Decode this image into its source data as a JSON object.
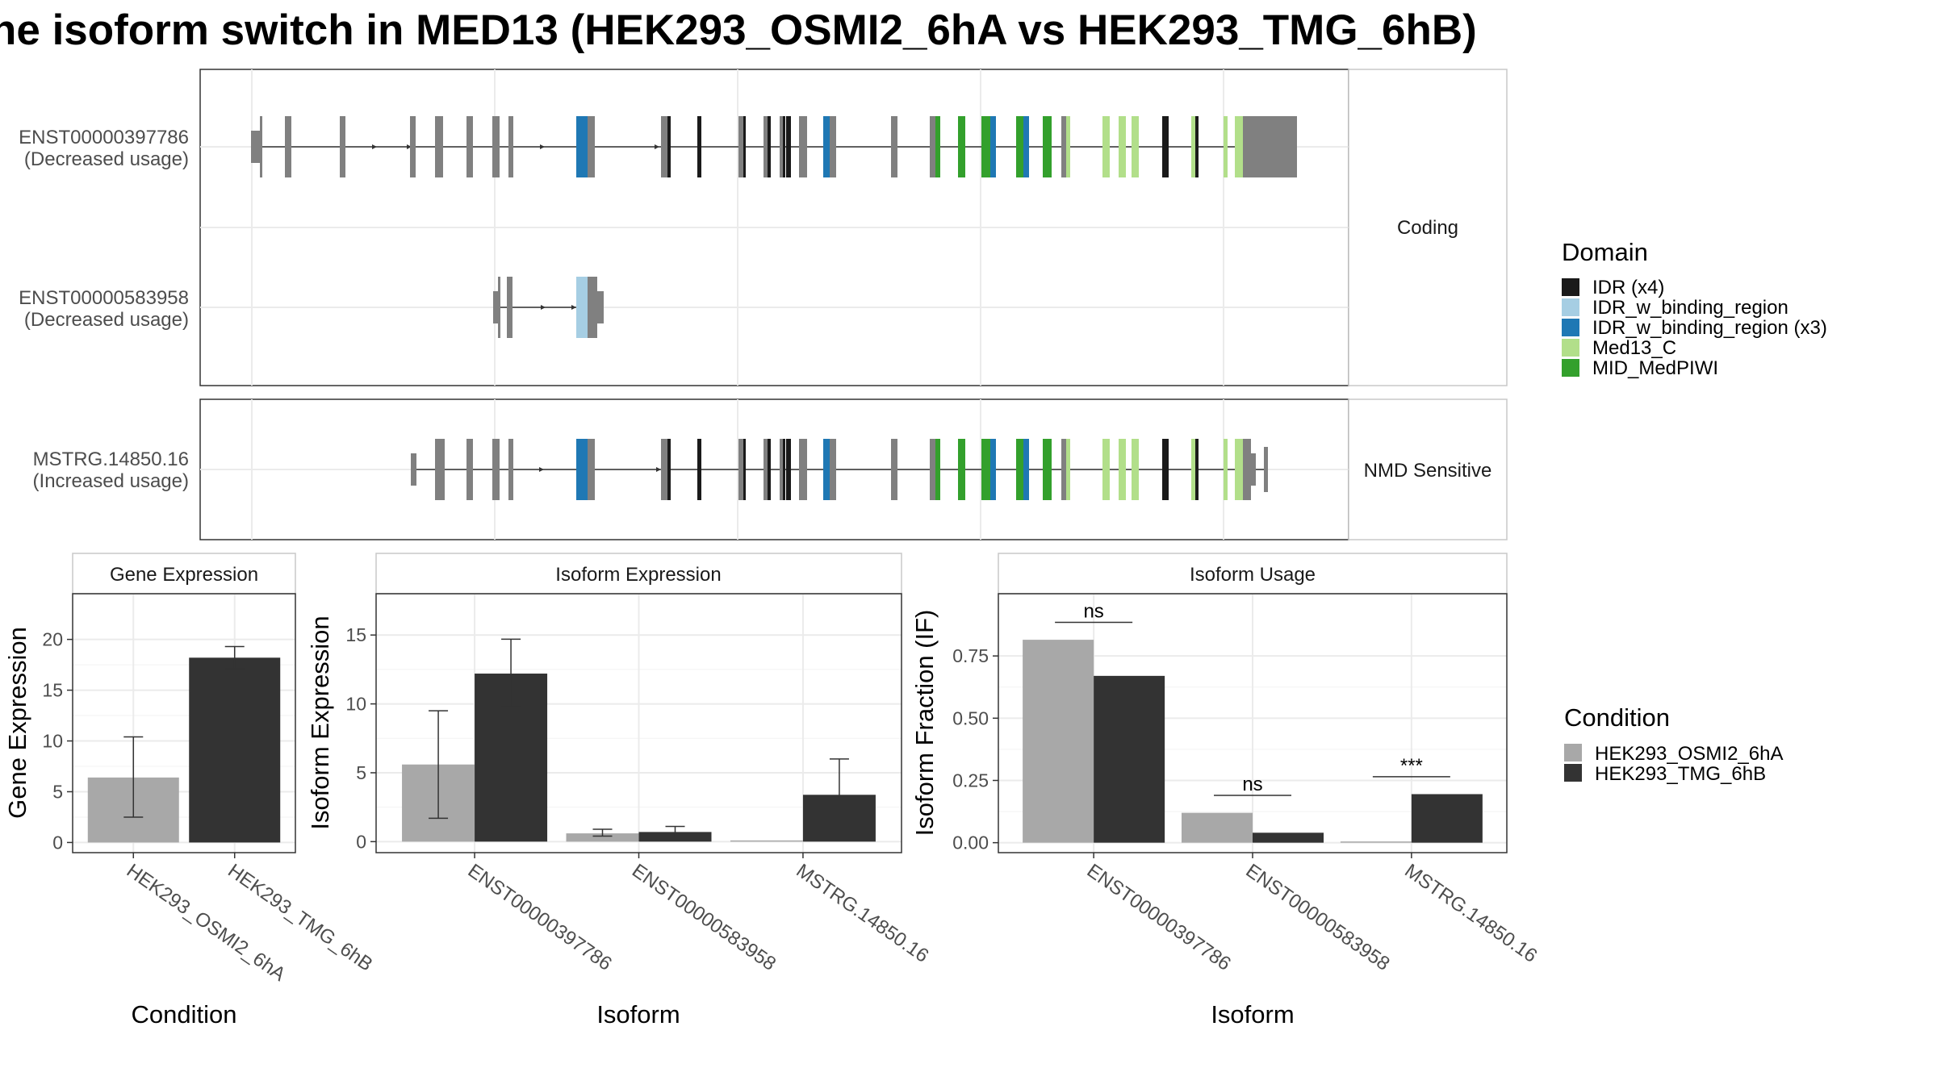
{
  "figure": {
    "title": "he isoform switch in MED13 (HEK293_OSMI2_6hA vs HEK293_TMG_6hB)",
    "colors": {
      "IDR (x4)": "#1a1a1a",
      "IDR_w_binding_region": "#a6cee3",
      "IDR_w_binding_region (x3)": "#1f78b4",
      "Med13_C": "#b2df8a",
      "MID_MedPIWI": "#33a02c",
      "exon": "#808080",
      "condA": "#a8a8a8",
      "condB": "#333333"
    }
  },
  "structure": {
    "coding_panel_label": "Coding",
    "nmd_panel_label": "NMD Sensitive",
    "transcripts": [
      {
        "id": "ENST00000397786",
        "usage": "(Decreased usage)",
        "group": "coding"
      },
      {
        "id": "ENST00000583958",
        "usage": "(Decreased usage)",
        "group": "coding"
      },
      {
        "id": "MSTRG.14850.16",
        "usage": "(Increased usage)",
        "group": "nmd"
      }
    ]
  },
  "legend_domain": {
    "title": "Domain",
    "items": [
      {
        "label": "IDR (x4)",
        "color": "#1a1a1a"
      },
      {
        "label": "IDR_w_binding_region",
        "color": "#a6cee3"
      },
      {
        "label": "IDR_w_binding_region (x3)",
        "color": "#1f78b4"
      },
      {
        "label": "Med13_C",
        "color": "#b2df8a"
      },
      {
        "label": "MID_MedPIWI",
        "color": "#33a02c"
      }
    ]
  },
  "legend_condition": {
    "title": "Condition",
    "items": [
      {
        "label": "HEK293_OSMI2_6hA",
        "color": "#a8a8a8"
      },
      {
        "label": "HEK293_TMG_6hB",
        "color": "#333333"
      }
    ]
  },
  "chart_data": [
    {
      "type": "bar",
      "title": "Gene Expression",
      "xlabel": "Condition",
      "ylabel": "Gene Expression",
      "categories": [
        "HEK293_OSMI2_6hA",
        "HEK293_TMG_6hB"
      ],
      "series": [
        {
          "name": "HEK293_OSMI2_6hA",
          "values": [
            6.4,
            null
          ],
          "err_low": [
            2.5,
            null
          ],
          "err_high": [
            10.4,
            null
          ]
        },
        {
          "name": "HEK293_TMG_6hB",
          "values": [
            null,
            18.2
          ],
          "err_low": [
            null,
            17.1
          ],
          "err_high": [
            null,
            19.3
          ]
        }
      ],
      "ylim": [
        -1,
        24.5
      ],
      "yticks": [
        0,
        5,
        10,
        15,
        20
      ]
    },
    {
      "type": "bar",
      "title": "Isoform Expression",
      "xlabel": "Isoform",
      "ylabel": "Isoform Expression",
      "categories": [
        "ENST00000397786",
        "ENST00000583958",
        "MSTRG.14850.16"
      ],
      "series": [
        {
          "name": "HEK293_OSMI2_6hA",
          "values": [
            5.6,
            0.6,
            0.0
          ],
          "err_low": [
            1.7,
            0.4,
            0.0
          ],
          "err_high": [
            9.5,
            0.9,
            0.0
          ]
        },
        {
          "name": "HEK293_TMG_6hB",
          "values": [
            12.2,
            0.7,
            3.4
          ],
          "err_low": [
            9.8,
            0.3,
            1.0
          ],
          "err_high": [
            14.7,
            1.1,
            6.0
          ]
        }
      ],
      "ylim": [
        -0.8,
        18
      ],
      "yticks": [
        0,
        5,
        10,
        15
      ]
    },
    {
      "type": "bar",
      "title": "Isoform Usage",
      "xlabel": "Isoform",
      "ylabel": "Isoform Fraction (IF)",
      "categories": [
        "ENST00000397786",
        "ENST00000583958",
        "MSTRG.14850.16"
      ],
      "series": [
        {
          "name": "HEK293_OSMI2_6hA",
          "values": [
            0.815,
            0.12,
            0.0
          ]
        },
        {
          "name": "HEK293_TMG_6hB",
          "values": [
            0.67,
            0.04,
            0.195
          ]
        }
      ],
      "significance": [
        "ns",
        "ns",
        "***"
      ],
      "ylim": [
        -0.04,
        1.0
      ],
      "yticks": [
        0.0,
        0.25,
        0.5,
        0.75
      ],
      "ytick_labels": [
        "0.00",
        "0.25",
        "0.50",
        "0.75"
      ]
    }
  ]
}
